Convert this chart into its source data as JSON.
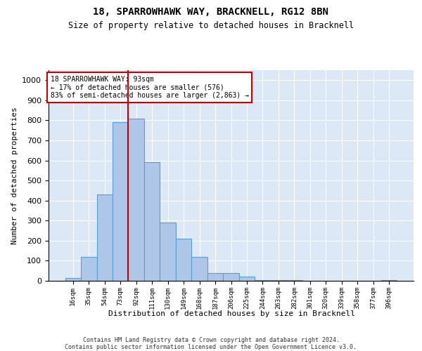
{
  "title": "18, SPARROWHAWK WAY, BRACKNELL, RG12 8BN",
  "subtitle": "Size of property relative to detached houses in Bracknell",
  "xlabel": "Distribution of detached houses by size in Bracknell",
  "ylabel": "Number of detached properties",
  "categories": [
    "16sqm",
    "35sqm",
    "54sqm",
    "73sqm",
    "92sqm",
    "111sqm",
    "130sqm",
    "149sqm",
    "168sqm",
    "187sqm",
    "206sqm",
    "225sqm",
    "244sqm",
    "263sqm",
    "282sqm",
    "301sqm",
    "320sqm",
    "339sqm",
    "358sqm",
    "377sqm",
    "396sqm"
  ],
  "values": [
    15,
    120,
    430,
    790,
    810,
    590,
    290,
    210,
    120,
    40,
    40,
    20,
    5,
    3,
    3,
    0,
    0,
    0,
    0,
    0,
    5
  ],
  "bar_color": "#aec6e8",
  "bar_edge_color": "#5a9fd4",
  "vline_x_index": 4,
  "property_line_label": "18 SPARROWHAWK WAY: 93sqm",
  "annotation_line1": "← 17% of detached houses are smaller (576)",
  "annotation_line2": "83% of semi-detached houses are larger (2,863) →",
  "annotation_box_color": "#ffffff",
  "annotation_box_edge_color": "#cc0000",
  "vline_color": "#cc0000",
  "ylim": [
    0,
    1050
  ],
  "yticks": [
    0,
    100,
    200,
    300,
    400,
    500,
    600,
    700,
    800,
    900,
    1000
  ],
  "bg_color": "#dce8f5",
  "footer_line1": "Contains HM Land Registry data © Crown copyright and database right 2024.",
  "footer_line2": "Contains public sector information licensed under the Open Government Licence v3.0."
}
